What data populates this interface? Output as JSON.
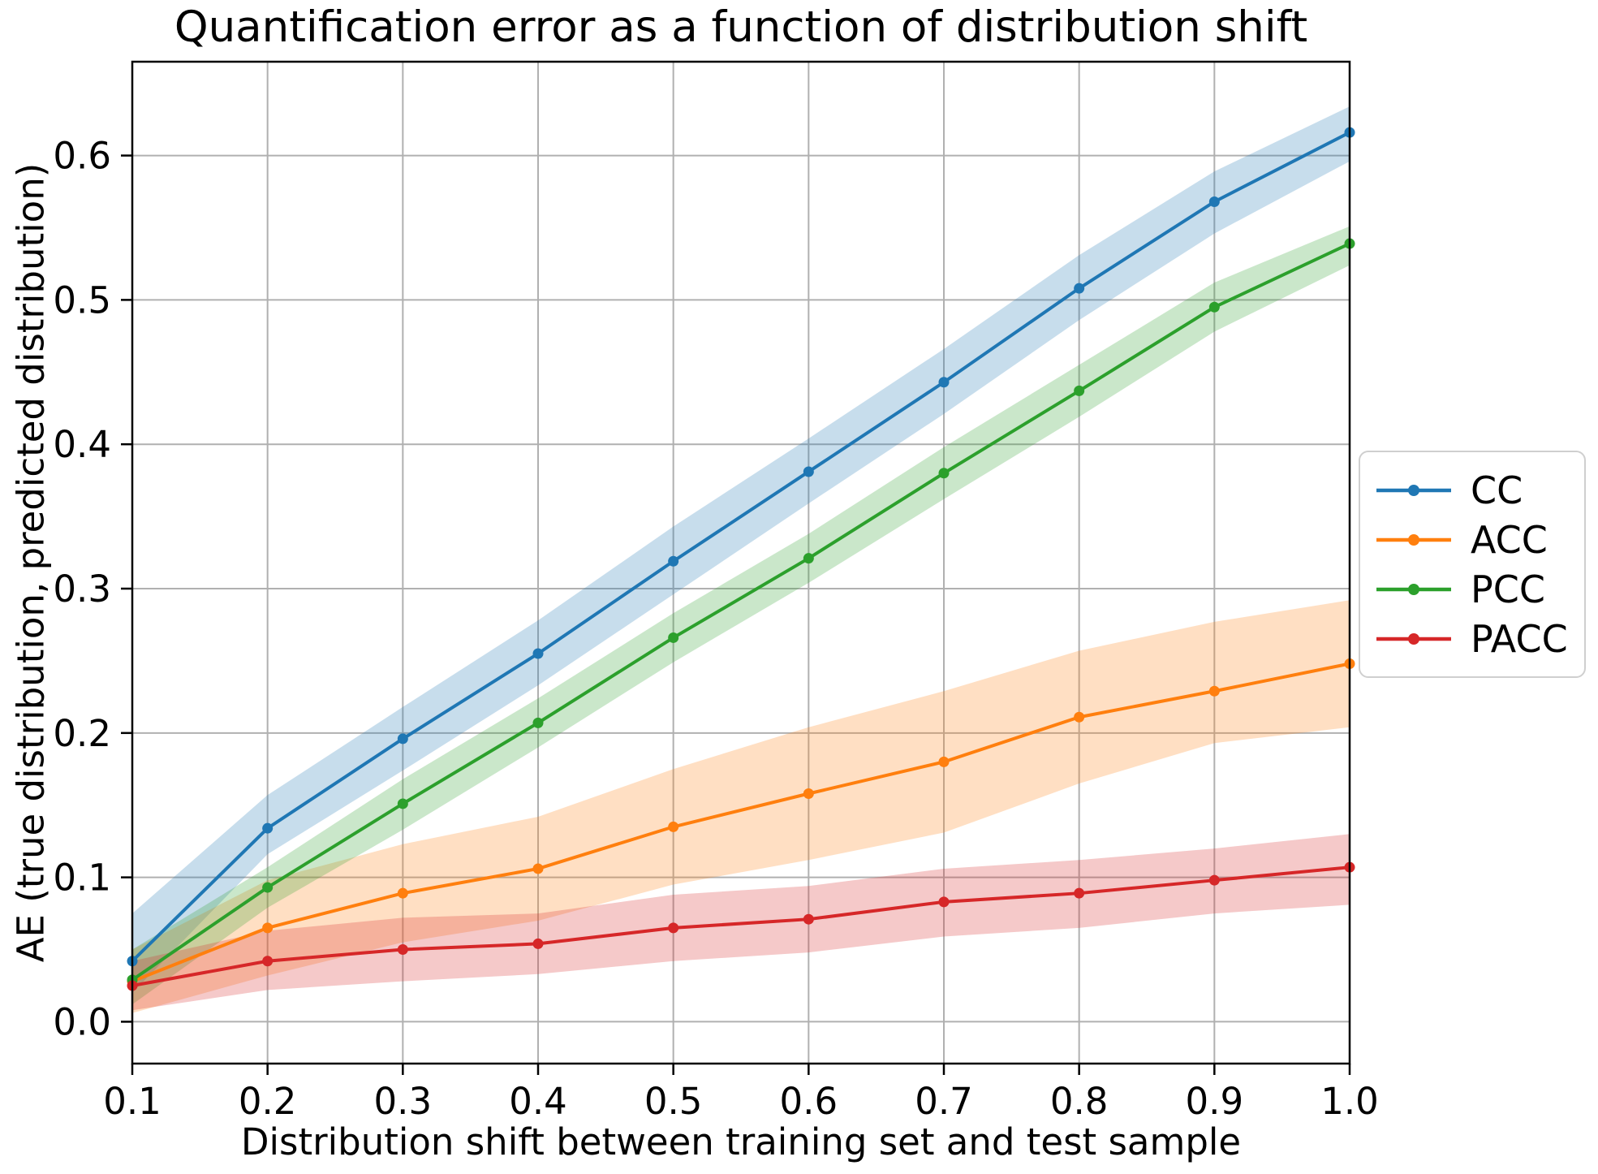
{
  "figure": {
    "title": "Quantification error as a function of distribution shift",
    "xlabel": "Distribution shift between training set and test sample",
    "ylabel": "AE (true distribution, predicted distribution)"
  },
  "palette": {
    "grid": "#b0b0b0",
    "spine": "#000000",
    "legend_border": "#cfcfcf",
    "band_alpha": 0.25
  },
  "chart_data": {
    "type": "line",
    "title": "Quantification error as a function of distribution shift",
    "xlabel": "Distribution shift between training set and test sample",
    "ylabel": "AE (true distribution, predicted distribution)",
    "x": [
      0.1,
      0.2,
      0.3,
      0.4,
      0.5,
      0.6,
      0.7,
      0.8,
      0.9,
      1.0
    ],
    "x_tick_labels": [
      "0.1",
      "0.2",
      "0.3",
      "0.4",
      "0.5",
      "0.6",
      "0.7",
      "0.8",
      "0.9",
      "1.0"
    ],
    "y_ticks": [
      0.0,
      0.1,
      0.2,
      0.3,
      0.4,
      0.5,
      0.6
    ],
    "y_tick_labels": [
      "0.0",
      "0.1",
      "0.2",
      "0.3",
      "0.4",
      "0.5",
      "0.6"
    ],
    "xlim": [
      0.1,
      1.0
    ],
    "ylim": [
      -0.029,
      0.665
    ],
    "grid": true,
    "legend_position": "outside-right",
    "series": [
      {
        "name": "CC",
        "color": "#1f77b4",
        "values": [
          0.042,
          0.134,
          0.196,
          0.255,
          0.319,
          0.381,
          0.443,
          0.508,
          0.568,
          0.616
        ],
        "band_lower": [
          0.02,
          0.116,
          0.174,
          0.233,
          0.296,
          0.359,
          0.421,
          0.486,
          0.546,
          0.596
        ],
        "band_upper": [
          0.075,
          0.157,
          0.218,
          0.278,
          0.343,
          0.404,
          0.466,
          0.531,
          0.589,
          0.634
        ]
      },
      {
        "name": "ACC",
        "color": "#ff7f0e",
        "values": [
          0.028,
          0.065,
          0.089,
          0.106,
          0.135,
          0.158,
          0.18,
          0.211,
          0.229,
          0.248
        ],
        "band_lower": [
          0.006,
          0.032,
          0.055,
          0.07,
          0.095,
          0.112,
          0.131,
          0.165,
          0.193,
          0.204
        ],
        "band_upper": [
          0.05,
          0.098,
          0.123,
          0.142,
          0.175,
          0.204,
          0.229,
          0.257,
          0.277,
          0.292
        ]
      },
      {
        "name": "PCC",
        "color": "#2ca02c",
        "values": [
          0.029,
          0.093,
          0.151,
          0.207,
          0.266,
          0.321,
          0.38,
          0.437,
          0.495,
          0.539
        ],
        "band_lower": [
          0.012,
          0.079,
          0.133,
          0.19,
          0.249,
          0.304,
          0.362,
          0.419,
          0.478,
          0.524
        ],
        "band_upper": [
          0.05,
          0.107,
          0.168,
          0.224,
          0.283,
          0.338,
          0.398,
          0.455,
          0.512,
          0.551
        ]
      },
      {
        "name": "PACC",
        "color": "#d62728",
        "values": [
          0.025,
          0.042,
          0.05,
          0.054,
          0.065,
          0.071,
          0.083,
          0.089,
          0.098,
          0.107
        ],
        "band_lower": [
          0.008,
          0.022,
          0.028,
          0.033,
          0.042,
          0.048,
          0.059,
          0.065,
          0.075,
          0.081
        ],
        "band_upper": [
          0.042,
          0.063,
          0.072,
          0.075,
          0.088,
          0.094,
          0.106,
          0.112,
          0.12,
          0.13
        ]
      }
    ]
  }
}
